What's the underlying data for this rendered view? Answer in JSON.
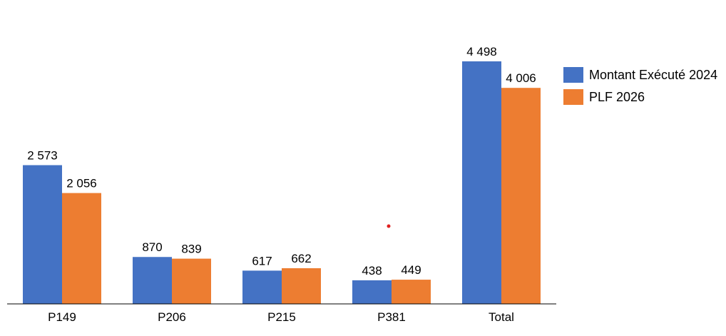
{
  "chart_data": {
    "type": "bar",
    "title": "",
    "xlabel": "",
    "ylabel": "",
    "categories": [
      "P149",
      "P206",
      "P215",
      "P381",
      "Total"
    ],
    "series": [
      {
        "name": "Montant Exécuté 2024",
        "color": "#4472C4",
        "values": [
          2573,
          870,
          617,
          438,
          4498
        ],
        "labels": [
          "2 573",
          "870",
          "617",
          "438",
          "4 498"
        ]
      },
      {
        "name": "PLF 2026",
        "color": "#ED7D31",
        "values": [
          2056,
          839,
          662,
          449,
          4006
        ],
        "labels": [
          "2 056",
          "839",
          "662",
          "449",
          "4 006"
        ]
      }
    ],
    "ylim": [
      0,
      4498
    ],
    "grid": false,
    "legend_position": "right",
    "annotation_marker_color": "#E02020"
  }
}
